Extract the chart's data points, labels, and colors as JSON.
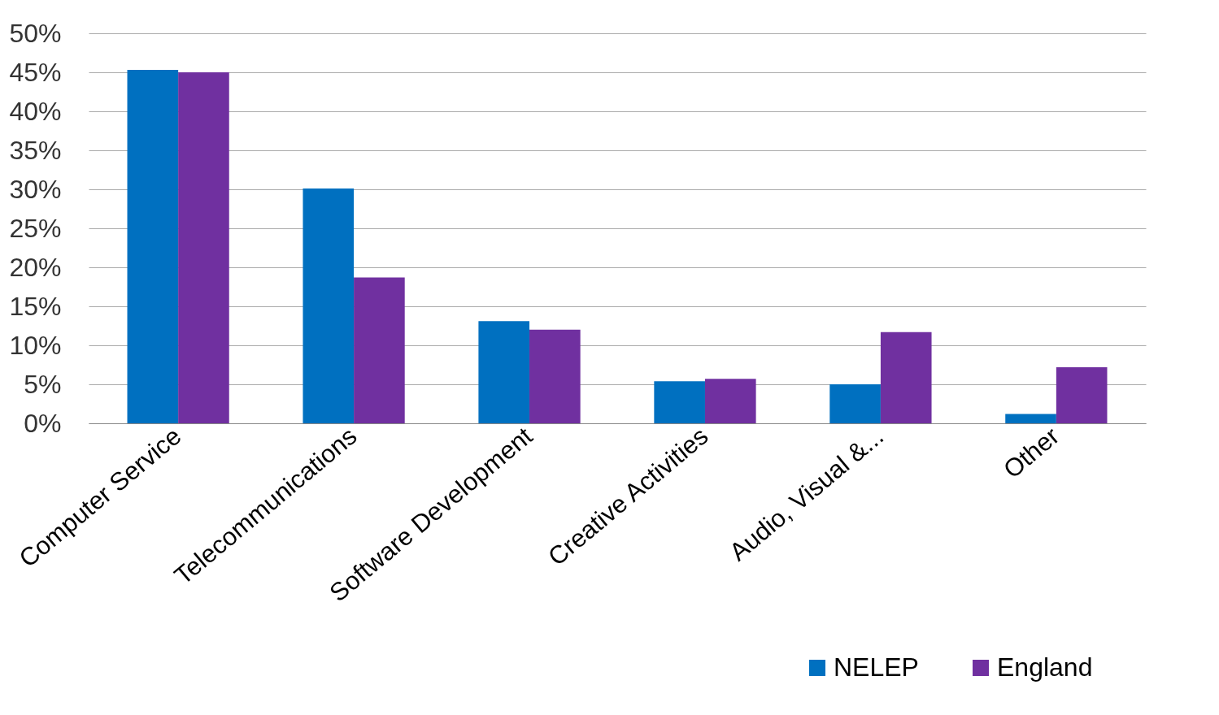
{
  "chart_data": {
    "type": "bar",
    "categories": [
      "Computer Service",
      "Telecommunications",
      "Software Development",
      "Creative Activities",
      "Audio, Visual &...",
      "Other"
    ],
    "series": [
      {
        "name": "NELEP",
        "color": "#0070c0",
        "values": [
          45.3,
          30.1,
          13.1,
          5.4,
          5.0,
          1.2
        ]
      },
      {
        "name": "England",
        "color": "#7030a0",
        "values": [
          45.0,
          18.7,
          12.0,
          5.7,
          11.7,
          7.2
        ]
      }
    ],
    "ylim": [
      0,
      50
    ],
    "yticks": [
      {
        "value": 0,
        "label": "0%"
      },
      {
        "value": 5,
        "label": "5%"
      },
      {
        "value": 10,
        "label": "10%"
      },
      {
        "value": 15,
        "label": "15%"
      },
      {
        "value": 20,
        "label": "20%"
      },
      {
        "value": 25,
        "label": "25%"
      },
      {
        "value": 30,
        "label": "30%"
      },
      {
        "value": 35,
        "label": "35%"
      },
      {
        "value": 40,
        "label": "40%"
      },
      {
        "value": 45,
        "label": "45%"
      },
      {
        "value": 50,
        "label": "50%"
      }
    ],
    "grid": "y",
    "legend": "bottom right"
  }
}
